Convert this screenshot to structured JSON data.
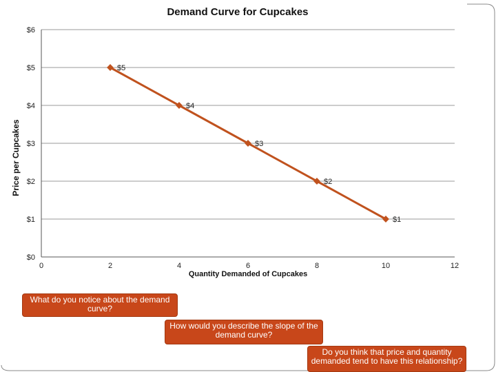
{
  "chart_data": {
    "type": "line",
    "title": "Demand Curve for Cupcakes",
    "xlabel": "Quantity Demanded of Cupcakes",
    "ylabel": "Price per Cupcakes",
    "xlim": [
      0,
      12
    ],
    "ylim": [
      0,
      6
    ],
    "x_ticks": [
      "0",
      "2",
      "4",
      "6",
      "8",
      "10",
      "12"
    ],
    "y_ticks": [
      "$0",
      "$1",
      "$2",
      "$3",
      "$4",
      "$5",
      "$6"
    ],
    "grid": "horizontal",
    "series": [
      {
        "x": [
          2,
          4,
          6,
          8,
          10
        ],
        "y": [
          5,
          4,
          3,
          2,
          1
        ],
        "labels": [
          "$5",
          "$4",
          "$3",
          "$2",
          "$1"
        ],
        "color": "#c0521e"
      }
    ]
  },
  "callouts": [
    "What do you notice about the demand curve?",
    "How would you describe the slope of the demand curve?",
    "Do you think that price and quantity demanded tend to have this relationship?"
  ],
  "colors": {
    "line": "#c0521e",
    "callout_bg": "#c8471a",
    "grid": "#999999"
  }
}
